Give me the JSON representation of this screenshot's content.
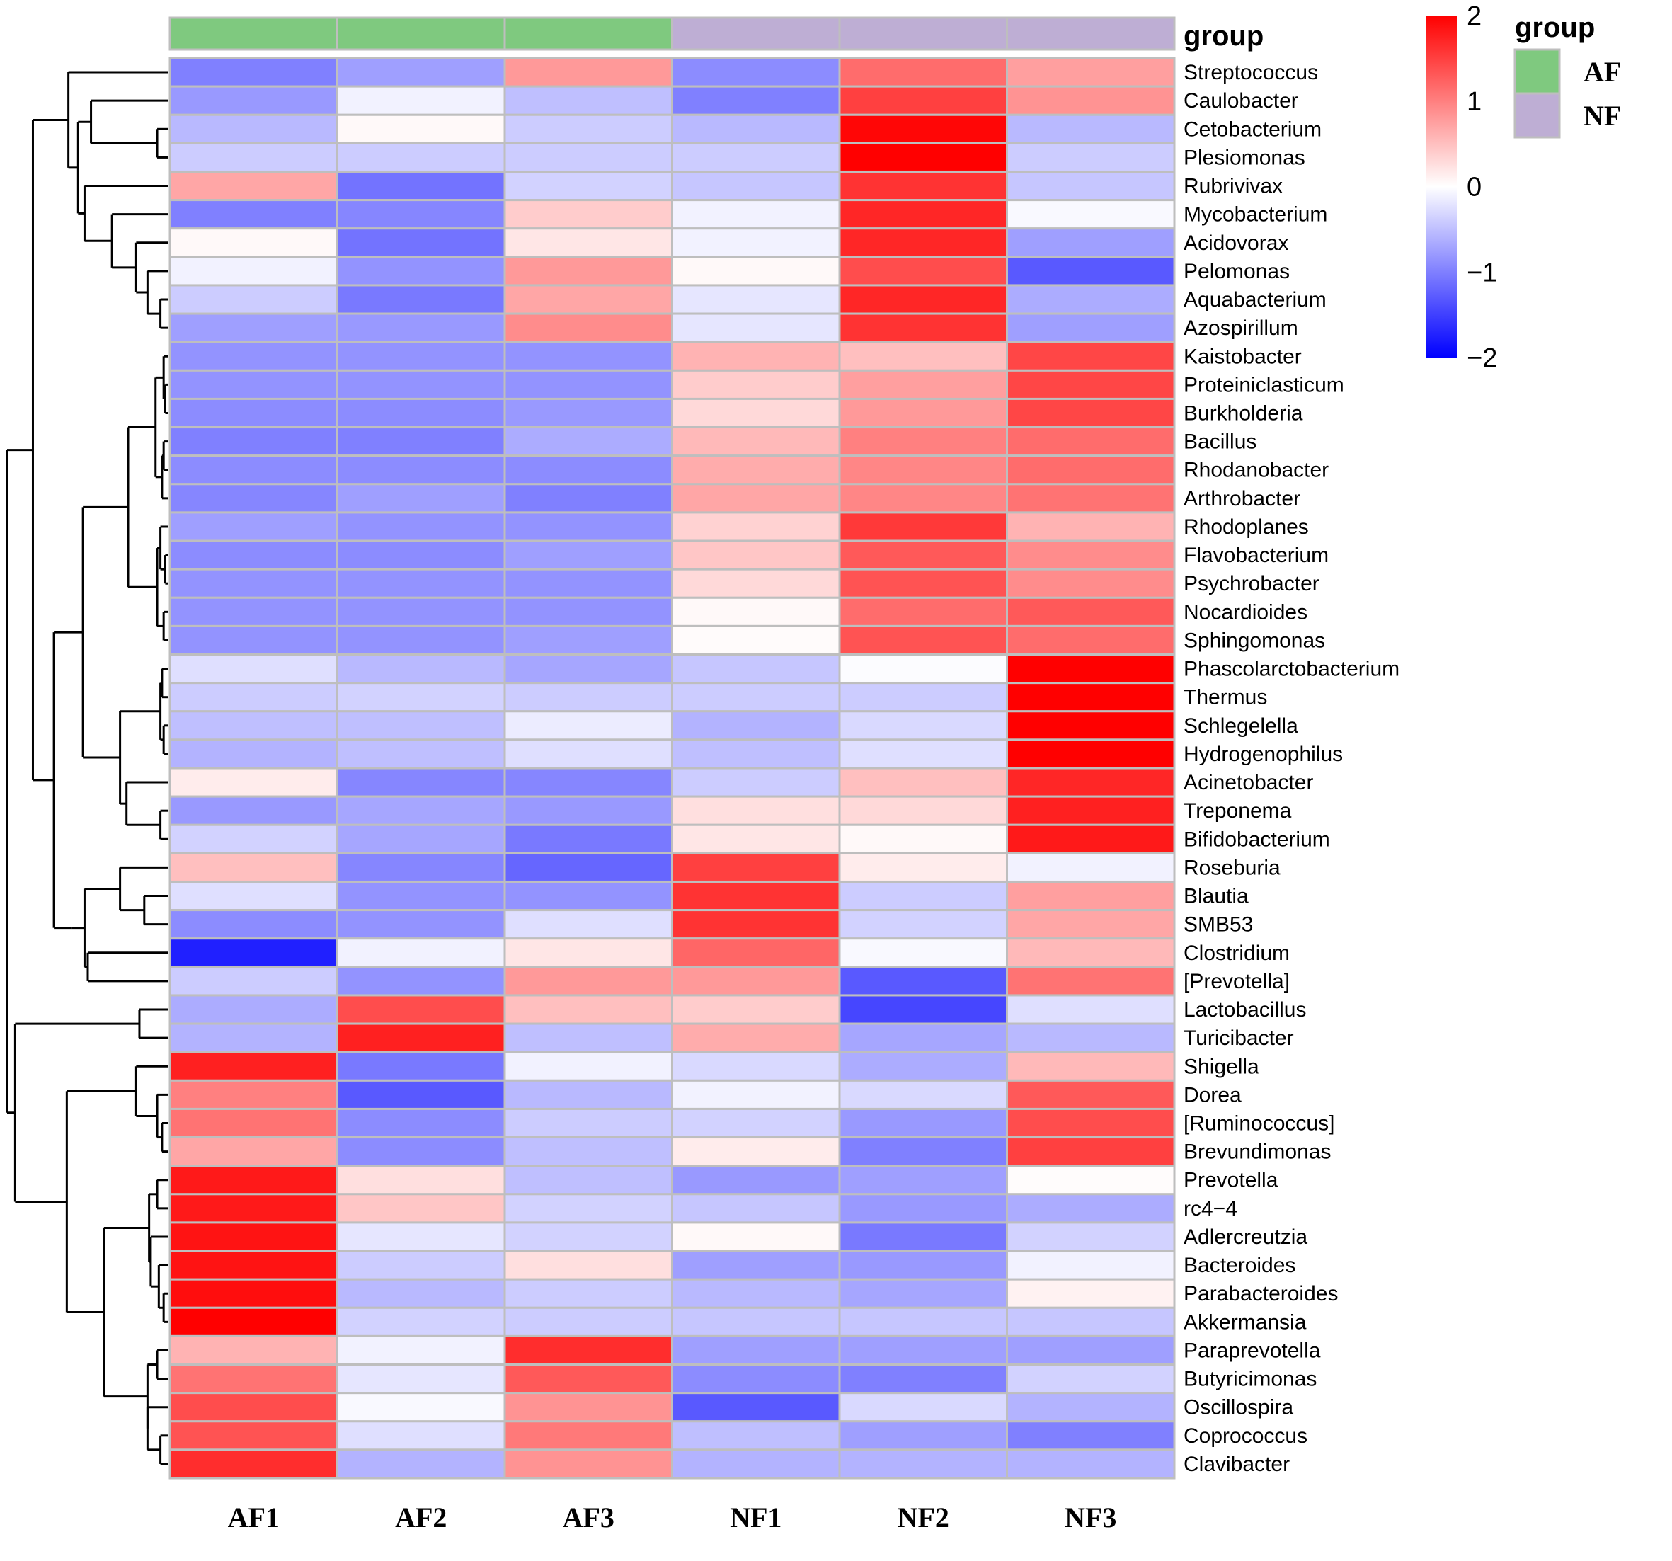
{
  "chart_data": {
    "type": "heatmap",
    "title": "",
    "columns": [
      "AF1",
      "AF2",
      "AF3",
      "NF1",
      "NF2",
      "NF3"
    ],
    "column_groups": [
      "AF",
      "AF",
      "AF",
      "NF",
      "NF",
      "NF"
    ],
    "annotation": {
      "title": "group",
      "legend_title": "group",
      "levels": [
        {
          "name": "AF",
          "color": "#7fc97f"
        },
        {
          "name": "NF",
          "color": "#beaed4"
        }
      ]
    },
    "color_scale": {
      "min": -2,
      "mid": 0,
      "max": 2,
      "low_color": "#0000ff",
      "mid_color": "#ffffff",
      "high_color": "#ff0000",
      "ticks": [
        "2",
        "1",
        "0",
        "−1",
        "−2"
      ],
      "tick_values": [
        2,
        1,
        0,
        -1,
        -2
      ],
      "legend_position": "top-right"
    },
    "rows": [
      {
        "name": "Streptococcus",
        "values": [
          -1.0,
          -0.75,
          0.8,
          -0.9,
          1.15,
          0.75
        ]
      },
      {
        "name": "Caulobacter",
        "values": [
          -0.8,
          -0.1,
          -0.5,
          -1.0,
          1.5,
          0.85
        ]
      },
      {
        "name": "Cetobacterium",
        "values": [
          -0.55,
          0.05,
          -0.4,
          -0.55,
          1.95,
          -0.55
        ]
      },
      {
        "name": "Plesiomonas",
        "values": [
          -0.4,
          -0.4,
          -0.4,
          -0.4,
          2.0,
          -0.4
        ]
      },
      {
        "name": "Rubrivivax",
        "values": [
          0.7,
          -1.1,
          -0.35,
          -0.45,
          1.6,
          -0.45
        ]
      },
      {
        "name": "Mycobacterium",
        "values": [
          -1.0,
          -0.95,
          0.4,
          -0.1,
          1.7,
          -0.05
        ]
      },
      {
        "name": "Acidovorax",
        "values": [
          0.05,
          -1.1,
          0.2,
          -0.1,
          1.7,
          -0.75
        ]
      },
      {
        "name": "Pelomonas",
        "values": [
          -0.1,
          -0.85,
          0.8,
          0.05,
          1.4,
          -1.3
        ]
      },
      {
        "name": "Aquabacterium",
        "values": [
          -0.4,
          -1.05,
          0.7,
          -0.2,
          1.7,
          -0.65
        ]
      },
      {
        "name": "Azospirillum",
        "values": [
          -0.75,
          -0.8,
          0.9,
          -0.2,
          1.6,
          -0.75
        ]
      },
      {
        "name": "Kaistobacter",
        "values": [
          -0.85,
          -0.85,
          -0.85,
          0.6,
          0.5,
          1.45
        ]
      },
      {
        "name": "Proteiniclasticum",
        "values": [
          -0.85,
          -0.85,
          -0.85,
          0.4,
          0.75,
          1.45
        ]
      },
      {
        "name": "Burkholderia",
        "values": [
          -0.9,
          -0.9,
          -0.8,
          0.3,
          0.8,
          1.45
        ]
      },
      {
        "name": "Bacillus",
        "values": [
          -1.0,
          -1.0,
          -0.65,
          0.55,
          1.0,
          1.15
        ]
      },
      {
        "name": "Rhodanobacter",
        "values": [
          -0.9,
          -0.9,
          -0.9,
          0.65,
          0.95,
          1.15
        ]
      },
      {
        "name": "Arthrobacter",
        "values": [
          -0.95,
          -0.75,
          -1.0,
          0.7,
          0.95,
          1.1
        ]
      },
      {
        "name": "Rhodoplanes",
        "values": [
          -0.75,
          -0.85,
          -0.85,
          0.35,
          1.55,
          0.6
        ]
      },
      {
        "name": "Flavobacterium",
        "values": [
          -0.9,
          -0.9,
          -0.75,
          0.45,
          1.3,
          0.9
        ]
      },
      {
        "name": "Psychrobacter",
        "values": [
          -0.85,
          -0.85,
          -0.85,
          0.3,
          1.35,
          0.9
        ]
      },
      {
        "name": "Nocardioides",
        "values": [
          -0.85,
          -0.85,
          -0.85,
          0.05,
          1.15,
          1.3
        ]
      },
      {
        "name": "Sphingomonas",
        "values": [
          -0.85,
          -0.85,
          -0.75,
          0.03,
          1.35,
          1.15
        ]
      },
      {
        "name": "Phascolarctobacterium",
        "values": [
          -0.25,
          -0.55,
          -0.7,
          -0.45,
          -0.02,
          2.0
        ]
      },
      {
        "name": "Thermus",
        "values": [
          -0.4,
          -0.35,
          -0.4,
          -0.4,
          -0.4,
          2.0
        ]
      },
      {
        "name": "Schlegelella",
        "values": [
          -0.5,
          -0.5,
          -0.15,
          -0.6,
          -0.3,
          2.0
        ]
      },
      {
        "name": "Hydrogenophilus",
        "values": [
          -0.6,
          -0.5,
          -0.25,
          -0.5,
          -0.25,
          2.0
        ]
      },
      {
        "name": "Acinetobacter",
        "values": [
          0.15,
          -0.95,
          -0.95,
          -0.4,
          0.5,
          1.7
        ]
      },
      {
        "name": "Treponema",
        "values": [
          -0.8,
          -0.7,
          -0.8,
          0.25,
          0.3,
          1.75
        ]
      },
      {
        "name": "Bifidobacterium",
        "values": [
          -0.35,
          -0.7,
          -1.05,
          0.2,
          0.05,
          1.8
        ]
      },
      {
        "name": "Roseburia",
        "values": [
          0.5,
          -0.95,
          -1.2,
          1.5,
          0.15,
          -0.1
        ]
      },
      {
        "name": "Blautia",
        "values": [
          -0.25,
          -0.85,
          -0.85,
          1.6,
          -0.4,
          0.75
        ]
      },
      {
        "name": "SMB53",
        "values": [
          -0.9,
          -0.85,
          -0.25,
          1.6,
          -0.35,
          0.7
        ]
      },
      {
        "name": "Clostridium",
        "values": [
          -1.75,
          -0.1,
          0.2,
          1.2,
          -0.05,
          0.55
        ]
      },
      {
        "name": "[Prevotella]",
        "values": [
          -0.4,
          -0.85,
          0.8,
          0.8,
          -1.3,
          1.1
        ]
      },
      {
        "name": "Lactobacillus",
        "values": [
          -0.65,
          1.4,
          0.5,
          0.4,
          -1.45,
          -0.25
        ]
      },
      {
        "name": "Turicibacter",
        "values": [
          -0.6,
          1.75,
          -0.5,
          0.65,
          -0.7,
          -0.55
        ]
      },
      {
        "name": "Shigella",
        "values": [
          1.75,
          -1.05,
          -0.1,
          -0.3,
          -0.65,
          0.55
        ]
      },
      {
        "name": "Dorea",
        "values": [
          1.0,
          -1.3,
          -0.55,
          -0.1,
          -0.3,
          1.3
        ]
      },
      {
        "name": "[Ruminococcus]",
        "values": [
          1.1,
          -0.9,
          -0.4,
          -0.35,
          -0.8,
          1.4
        ]
      },
      {
        "name": "Brevundimonas",
        "values": [
          0.7,
          -0.9,
          -0.5,
          0.15,
          -1.0,
          1.5
        ]
      },
      {
        "name": "Prevotella",
        "values": [
          1.8,
          0.25,
          -0.5,
          -0.8,
          -0.75,
          0.02
        ]
      },
      {
        "name": "rc4−4",
        "values": [
          1.8,
          0.45,
          -0.35,
          -0.45,
          -0.8,
          -0.65
        ]
      },
      {
        "name": "Adlercreutzia",
        "values": [
          1.85,
          -0.2,
          -0.35,
          0.05,
          -1.05,
          -0.35
        ]
      },
      {
        "name": "Bacteroides",
        "values": [
          1.85,
          -0.4,
          0.25,
          -0.75,
          -0.8,
          -0.1
        ]
      },
      {
        "name": "Parabacteroides",
        "values": [
          1.9,
          -0.55,
          -0.4,
          -0.55,
          -0.7,
          0.1
        ]
      },
      {
        "name": "Akkermansia",
        "values": [
          2.0,
          -0.35,
          -0.4,
          -0.45,
          -0.45,
          -0.45
        ]
      },
      {
        "name": "Paraprevotella",
        "values": [
          0.6,
          -0.1,
          1.65,
          -0.75,
          -0.75,
          -0.75
        ]
      },
      {
        "name": "Butyricimonas",
        "values": [
          1.1,
          -0.2,
          1.3,
          -0.9,
          -1.0,
          -0.35
        ]
      },
      {
        "name": "Oscillospira",
        "values": [
          1.4,
          -0.05,
          0.85,
          -1.3,
          -0.3,
          -0.6
        ]
      },
      {
        "name": "Coprococcus",
        "values": [
          1.35,
          -0.25,
          1.05,
          -0.5,
          -0.75,
          -1.0
        ]
      },
      {
        "name": "Clavibacter",
        "values": [
          1.65,
          -0.6,
          0.85,
          -0.6,
          -0.6,
          -0.6
        ]
      }
    ],
    "row_dendrogram": {
      "note": "nested merge tree over row indices; h = relative merge distance (0..1)",
      "tree": {
        "h": 1.0,
        "c": [
          {
            "h": 0.84,
            "c": [
              {
                "h": 0.62,
                "c": [
                  0,
                  {
                    "h": 0.56,
                    "c": [
                      {
                        "h": 0.48,
                        "c": [
                          1,
                          {
                            "h": 0.07,
                            "c": [
                              2,
                              3
                            ]
                          }
                        ]
                      },
                      {
                        "h": 0.52,
                        "c": [
                          4,
                          {
                            "h": 0.35,
                            "c": [
                              5,
                              {
                                "h": 0.2,
                                "c": [
                                  6,
                                  {
                                    "h": 0.13,
                                    "c": [
                                      7,
                                      {
                                        "h": 0.05,
                                        "c": [
                                          8,
                                          9
                                        ]
                                      }
                                    ]
                                  }
                                ]
                              }
                            ]
                          }
                        ]
                      }
                    ]
                  }
                ]
              },
              {
                "h": 0.71,
                "c": [
                  {
                    "h": 0.53,
                    "c": [
                      {
                        "h": 0.25,
                        "c": [
                          {
                            "h": 0.08,
                            "c": [
                              {
                                "h": 0.03,
                                "c": [
                                  10,
                                  {
                                    "h": 0.02,
                                    "c": [
                                      11,
                                      12
                                    ]
                                  }
                                ]
                              },
                              {
                                "h": 0.04,
                                "c": [
                                  {
                                    "h": 0.03,
                                    "c": [
                                      13,
                                      14
                                    ]
                                  },
                                  15
                                ]
                              }
                            ]
                          },
                          {
                            "h": 0.07,
                            "c": [
                              {
                                "h": 0.05,
                                "c": [
                                  16,
                                  {
                                    "h": 0.02,
                                    "c": [
                                      17,
                                      18
                                    ]
                                  }
                                ]
                              },
                              {
                                "h": 0.03,
                                "c": [
                                  19,
                                  20
                                ]
                              }
                            ]
                          }
                        ]
                      },
                      {
                        "h": 0.3,
                        "c": [
                          {
                            "h": 0.05,
                            "c": [
                              {
                                "h": 0.04,
                                "c": [
                                  21,
                                  22
                                ]
                              },
                              {
                                "h": 0.03,
                                "c": [
                                  23,
                                  24
                                ]
                              }
                            ]
                          },
                          {
                            "h": 0.26,
                            "c": [
                              25,
                              {
                                "h": 0.05,
                                "c": [
                                  26,
                                  27
                                ]
                              }
                            ]
                          }
                        ]
                      }
                    ]
                  },
                  {
                    "h": 0.6,
                    "c": [
                      {
                        "h": 0.52,
                        "c": [
                          {
                            "h": 0.3,
                            "c": [
                              28,
                              {
                                "h": 0.15,
                                "c": [
                                  29,
                                  30
                                ]
                              }
                            ]
                          },
                          {
                            "h": 0.5,
                            "c": [
                              31,
                              32
                            ]
                          }
                        ]
                      }
                    ]
                  }
                ]
              }
            ]
          },
          {
            "h": 0.95,
            "c": [
              {
                "h": 0.18,
                "c": [
                  33,
                  34
                ]
              },
              {
                "h": 0.63,
                "c": [
                  {
                    "h": 0.2,
                    "c": [
                      35,
                      {
                        "h": 0.07,
                        "c": [
                          36,
                          {
                            "h": 0.04,
                            "c": [
                              37,
                              38
                            ]
                          }
                        ]
                      }
                    ]
                  },
                  {
                    "h": 0.4,
                    "c": [
                      {
                        "h": 0.12,
                        "c": [
                          {
                            "h": 0.07,
                            "c": [
                              39,
                              40
                            ]
                          },
                          {
                            "h": 0.11,
                            "c": [
                              41,
                              {
                                "h": 0.06,
                                "c": [
                                  42,
                                  {
                                    "h": 0.03,
                                    "c": [
                                      43,
                                      44
                                    ]
                                  }
                                ]
                              }
                            ]
                          }
                        ]
                      },
                      {
                        "h": 0.13,
                        "c": [
                          {
                            "h": 0.07,
                            "c": [
                              45,
                              46
                            ]
                          },
                          {
                            "h": 0.13,
                            "c": [
                              47,
                              {
                                "h": 0.05,
                                "c": [
                                  48,
                                  49
                                ]
                              }
                            ]
                          }
                        ]
                      }
                    ]
                  }
                ]
              }
            ]
          }
        ]
      }
    }
  }
}
